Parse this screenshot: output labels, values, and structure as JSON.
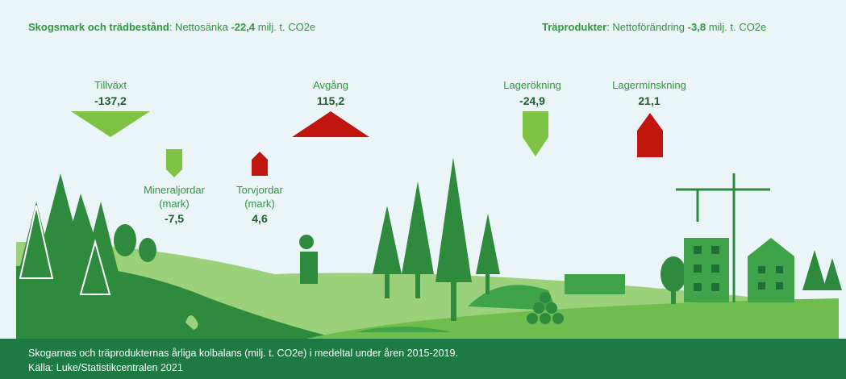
{
  "header": {
    "left": {
      "label": "Skogsmark och trädbestånd",
      "text": ": Nettosänka",
      "value": "-22,4",
      "unit": "milj. t. CO2e"
    },
    "right": {
      "label": "Träprodukter",
      "text": ": Nettoförändring",
      "value": "-3,8",
      "unit": "milj. t. CO2e"
    }
  },
  "flows": [
    {
      "label": "Tillväxt",
      "value": "-137,2"
    },
    {
      "label": "Avgång",
      "value": "115,2"
    },
    {
      "label": "Mineraljordar",
      "sublabel": "(mark)",
      "value": "-7,5"
    },
    {
      "label": "Torvjordar",
      "sublabel": "(mark)",
      "value": "4,6"
    },
    {
      "label": "Lagerökning",
      "value": "-24,9"
    },
    {
      "label": "Lagerminskning",
      "value": "21,1"
    }
  ],
  "footer": {
    "line1": "Skogarnas och träprodukternas årliga kolbalans (milj. t. CO2e) i medeltal under åren 2015-2019.",
    "line2": "Källa: Luke/Statistikcentralen 2021"
  }
}
